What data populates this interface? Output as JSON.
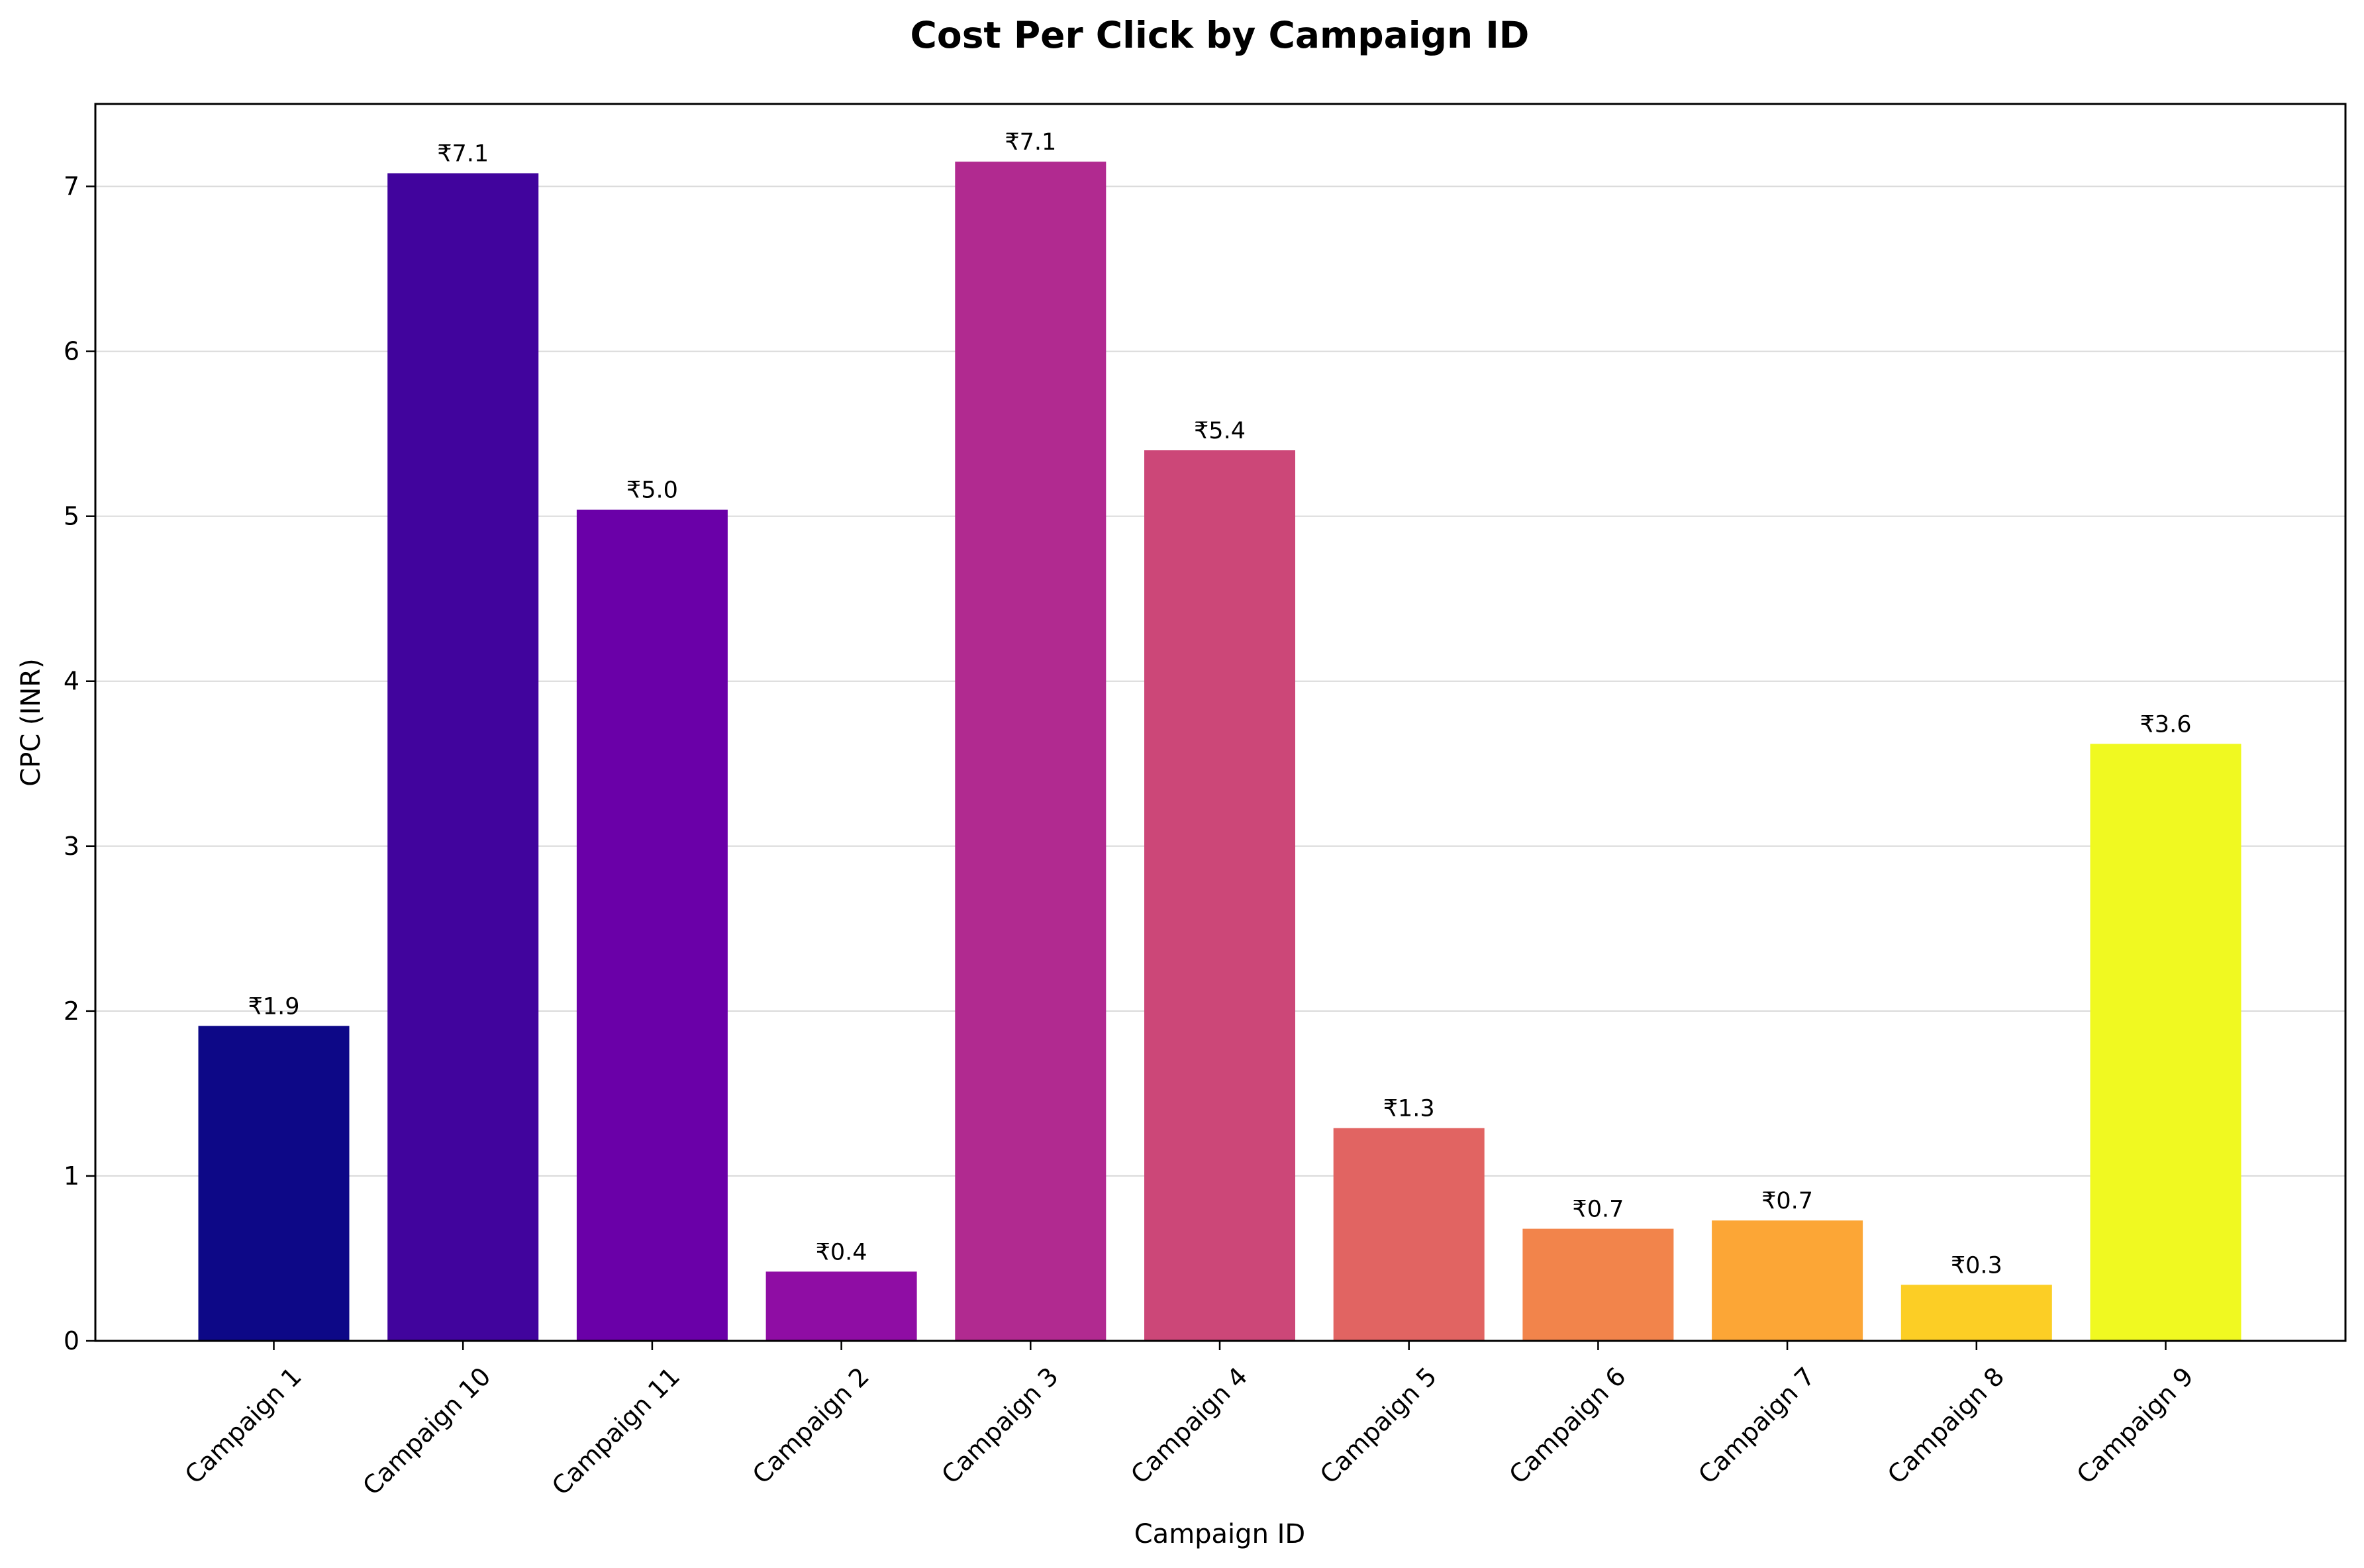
{
  "chart_data": {
    "type": "bar",
    "title": "Cost Per Click by Campaign ID",
    "xlabel": "Campaign ID",
    "ylabel": "CPC (INR)",
    "ylim": [
      0,
      7.5
    ],
    "yticks": [
      0,
      1,
      2,
      3,
      4,
      5,
      6,
      7
    ],
    "grid": "y",
    "categories": [
      "Campaign 1",
      "Campaign 10",
      "Campaign 11",
      "Campaign 2",
      "Campaign 3",
      "Campaign 4",
      "Campaign 5",
      "Campaign 6",
      "Campaign 7",
      "Campaign 8",
      "Campaign 9"
    ],
    "values": [
      1.91,
      7.08,
      5.04,
      0.42,
      7.15,
      5.4,
      1.29,
      0.68,
      0.73,
      0.34,
      3.62
    ],
    "value_labels": [
      "₹1.9",
      "₹7.1",
      "₹5.0",
      "₹0.4",
      "₹7.1",
      "₹5.4",
      "₹1.3",
      "₹0.7",
      "₹0.7",
      "₹0.3",
      "₹3.6"
    ],
    "colors": [
      "#0d0887",
      "#41049d",
      "#6a00a8",
      "#8f0da4",
      "#b12a90",
      "#cc4778",
      "#e16462",
      "#f2844b",
      "#fca636",
      "#fcce25",
      "#f0f921"
    ]
  }
}
